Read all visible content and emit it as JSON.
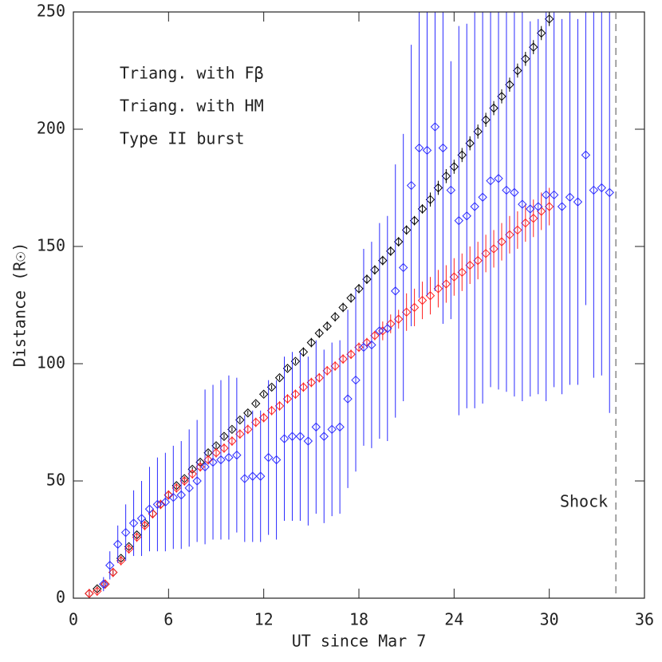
{
  "chart_data": {
    "type": "scatter",
    "x_label": "UT since Mar 7",
    "y_label": "Distance (R☉)",
    "xlim": [
      0,
      36
    ],
    "ylim": [
      0,
      250
    ],
    "xticks": [
      0,
      6,
      12,
      18,
      24,
      30,
      36
    ],
    "yticks": [
      0,
      50,
      100,
      150,
      200,
      250
    ],
    "series": [
      {
        "name": "Triang. with Fβ",
        "color": "#000000",
        "x": [
          1,
          1.5,
          2,
          2.5,
          3,
          3.5,
          4,
          4.5,
          5,
          5.5,
          6,
          6.5,
          7,
          7.5,
          8,
          8.5,
          9,
          9.5,
          10,
          10.5,
          11,
          11.5,
          12,
          12.5,
          13,
          13.5,
          14,
          14.5,
          15,
          15.5,
          16,
          16.5,
          17,
          17.5,
          18,
          18.5,
          19,
          19.5,
          20,
          20.5,
          21,
          21.5,
          22,
          22.5,
          23,
          23.5,
          24,
          24.5,
          25,
          25.5,
          26,
          26.5,
          27,
          27.5,
          28,
          28.5,
          29,
          29.5,
          30
        ],
        "values": [
          2,
          4,
          6,
          11,
          17,
          22,
          27,
          32,
          36,
          40,
          44,
          48,
          51,
          55,
          58,
          62,
          65,
          69,
          72,
          76,
          79,
          83,
          87,
          90,
          94,
          98,
          101,
          105,
          109,
          113,
          116,
          120,
          124,
          128,
          132,
          136,
          140,
          144,
          148,
          152,
          157,
          161,
          166,
          170,
          175,
          180,
          184,
          189,
          194,
          199,
          204,
          209,
          214,
          219,
          225,
          230,
          235,
          241,
          247
        ],
        "errors": [
          1,
          1,
          1,
          1,
          1,
          1,
          1,
          1,
          1,
          1,
          1,
          1,
          1,
          1,
          1,
          1,
          1,
          1,
          1,
          1,
          1,
          1,
          1,
          1,
          1,
          1,
          1,
          2,
          2,
          2,
          2,
          2,
          2,
          2,
          2,
          2,
          2,
          2,
          2,
          2,
          2,
          2,
          2,
          3,
          3,
          3,
          3,
          3,
          3,
          3,
          3,
          3,
          3,
          3,
          3,
          3,
          3,
          3,
          3
        ]
      },
      {
        "name": "Triang. with HM",
        "color": "#ff2020",
        "x": [
          1,
          1.5,
          2,
          2.5,
          3,
          3.5,
          4,
          4.5,
          5,
          5.5,
          6,
          6.5,
          7,
          7.5,
          8,
          8.5,
          9,
          9.5,
          10,
          10.5,
          11,
          11.5,
          12,
          12.5,
          13,
          13.5,
          14,
          14.5,
          15,
          15.5,
          16,
          16.5,
          17,
          17.5,
          18,
          18.5,
          19,
          19.5,
          20,
          20.5,
          21,
          21.5,
          22,
          22.5,
          23,
          23.5,
          24,
          24.5,
          25,
          25.5,
          26,
          26.5,
          27,
          27.5,
          28,
          28.5,
          29,
          29.5,
          30
        ],
        "values": [
          2,
          3,
          6,
          11,
          16,
          21,
          26,
          31,
          36,
          40,
          44,
          47,
          50,
          53,
          56,
          59,
          62,
          64,
          67,
          70,
          72,
          75,
          77,
          80,
          82,
          85,
          87,
          90,
          92,
          94,
          97,
          99,
          102,
          104,
          107,
          109,
          112,
          114,
          117,
          119,
          122,
          124,
          127,
          129,
          132,
          134,
          137,
          139,
          142,
          144,
          147,
          149,
          152,
          155,
          157,
          160,
          162,
          165,
          167
        ],
        "errors": [
          2,
          2,
          2,
          2,
          2,
          2,
          2,
          2,
          2,
          2,
          2,
          2,
          2,
          2,
          2,
          2,
          2,
          2,
          2,
          2,
          2,
          2,
          2,
          2,
          2,
          2,
          2,
          2,
          2,
          2,
          2,
          2,
          2,
          2,
          2,
          2,
          2,
          4,
          4,
          4,
          8,
          8,
          8,
          8,
          8,
          8,
          8,
          8,
          8,
          8,
          8,
          8,
          8,
          8,
          8,
          8,
          8,
          8,
          8
        ]
      },
      {
        "name": "Type II burst",
        "color": "#2a2aff",
        "x": [
          1.9,
          2.3,
          2.8,
          3.3,
          3.8,
          4.3,
          4.8,
          5.3,
          5.8,
          6.3,
          6.8,
          7.3,
          7.8,
          8.3,
          8.8,
          9.3,
          9.8,
          10.3,
          10.8,
          11.3,
          11.8,
          12.3,
          12.8,
          13.3,
          13.8,
          14.3,
          14.8,
          15.3,
          15.8,
          16.3,
          16.8,
          17.3,
          17.8,
          18.3,
          18.8,
          19.3,
          19.8,
          20.3,
          20.8,
          21.3,
          21.8,
          22.3,
          22.8,
          23.3,
          23.8,
          24.3,
          24.8,
          25.3,
          25.8,
          26.3,
          26.8,
          27.3,
          27.8,
          28.3,
          28.8,
          29.3,
          29.8,
          30.3,
          30.8,
          31.3,
          31.8,
          32.3,
          32.8,
          33.3,
          33.8
        ],
        "values": [
          6,
          14,
          23,
          28,
          32,
          34,
          38,
          40,
          41,
          43,
          44,
          47,
          50,
          56,
          58,
          59,
          60,
          61,
          51,
          52,
          52,
          60,
          59,
          68,
          69,
          69,
          67,
          73,
          69,
          72,
          73,
          85,
          93,
          107,
          108,
          114,
          115,
          131,
          141,
          176,
          192,
          191,
          201,
          192,
          174,
          161,
          163,
          167,
          171,
          178,
          179,
          174,
          173,
          168,
          166,
          167,
          172,
          172,
          167,
          171,
          169,
          189,
          174,
          175,
          173
        ],
        "errors": [
          3,
          6,
          8,
          12,
          14,
          16,
          18,
          20,
          21,
          22,
          23,
          25,
          26,
          33,
          33,
          34,
          35,
          33,
          27,
          28,
          28,
          33,
          34,
          35,
          36,
          36,
          36,
          37,
          37,
          37,
          37,
          38,
          39,
          42,
          44,
          46,
          48,
          54,
          57,
          60,
          64,
          62,
          70,
          75,
          55,
          83,
          82,
          86,
          88,
          88,
          90,
          86,
          87,
          84,
          80,
          80,
          88,
          82,
          80,
          80,
          78,
          64,
          80,
          80,
          94
        ]
      }
    ],
    "annotations": [
      {
        "text": "Shock",
        "x": 34.2
      }
    ]
  }
}
